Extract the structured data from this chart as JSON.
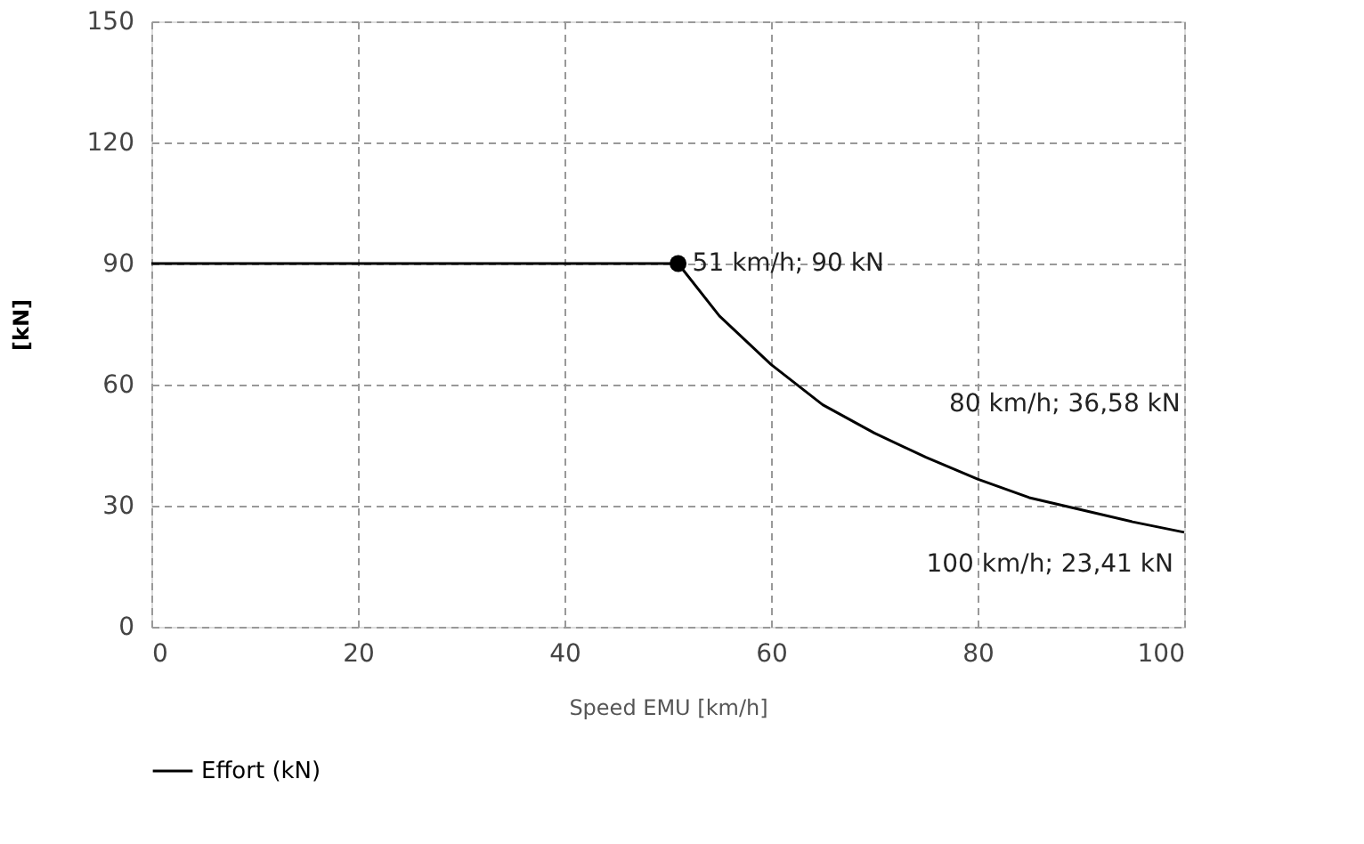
{
  "chart_data": {
    "type": "line",
    "xlabel": "Speed EMU [km/h]",
    "ylabel": "[kN]",
    "xlim": [
      0,
      100
    ],
    "xticks": [
      0,
      20,
      40,
      60,
      80,
      100
    ],
    "ylim": [
      0,
      150
    ],
    "yticks": [
      0,
      30,
      60,
      90,
      120,
      150
    ],
    "grid": true,
    "legend": "bottom",
    "line_style": "solid",
    "series": [
      {
        "name": "Effort (kN)",
        "color": "#000000",
        "marker": "none",
        "x": [
          0,
          51,
          55,
          60,
          65,
          70,
          75,
          80,
          85,
          90,
          95,
          100
        ],
        "values": [
          90,
          90,
          77,
          65,
          55,
          48,
          42,
          36.58,
          32,
          29,
          26,
          23.41
        ]
      },
      {
        "type": "scatter",
        "color": "#000000",
        "marker": "circle",
        "x": [
          51
        ],
        "values": [
          90
        ]
      }
    ],
    "annotations": [
      {
        "text": "51 km/h; 90 kN",
        "x": 51,
        "y": 90
      },
      {
        "text": "80 km/h; 36,58 kN",
        "x": 80,
        "y": 36.58
      },
      {
        "text": "100 km/h; 23,41 kN",
        "x": 100,
        "y": 23.41
      }
    ]
  }
}
